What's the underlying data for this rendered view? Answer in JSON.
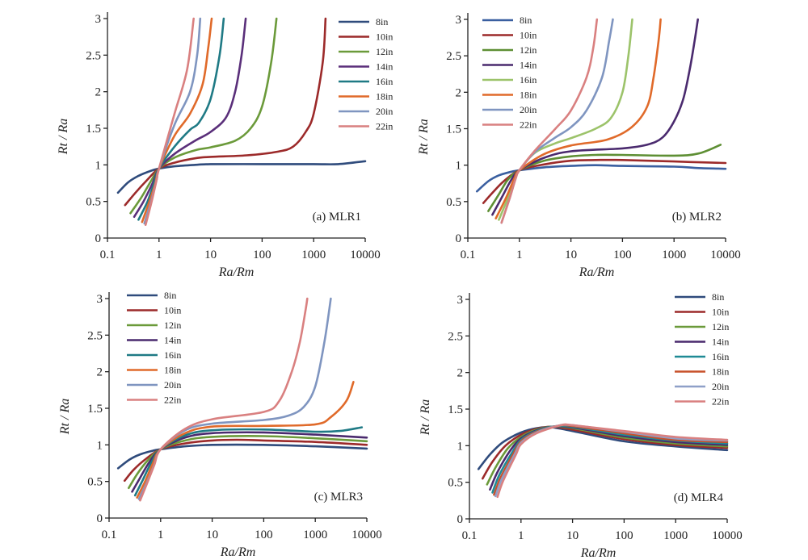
{
  "chart_data": [
    {
      "type": "line",
      "title": "",
      "panel_label": "(a) MLR1",
      "xlabel": "Ra/Rm",
      "ylabel": "Rt / Ra",
      "xscale": "log",
      "xlim": [
        0.1,
        10000
      ],
      "ylim": [
        0,
        3
      ],
      "x_ticks": [
        "0.1",
        "1",
        "10",
        "100",
        "1000",
        "10000"
      ],
      "y_ticks": [
        "0",
        "0.5",
        "1",
        "1.5",
        "2",
        "2.5",
        "3"
      ],
      "grid": false,
      "legend_position": "top-right",
      "series": [
        {
          "name": "8in",
          "color": "#2f4b7c",
          "x": [
            0.16,
            0.25,
            0.4,
            0.7,
            1,
            2,
            5,
            10,
            100,
            1000,
            3000,
            10000
          ],
          "y": [
            0.62,
            0.76,
            0.85,
            0.92,
            0.95,
            0.98,
            1.0,
            1.01,
            1.01,
            1.01,
            1.01,
            1.05
          ]
        },
        {
          "name": "10in",
          "color": "#9c2a2a",
          "x": [
            0.22,
            0.35,
            0.6,
            1,
            2,
            5,
            10,
            50,
            200,
            400,
            700,
            1000,
            1500,
            1700
          ],
          "y": [
            0.45,
            0.62,
            0.8,
            0.95,
            1.03,
            1.09,
            1.11,
            1.13,
            1.18,
            1.25,
            1.45,
            1.7,
            2.4,
            3.0
          ]
        },
        {
          "name": "12in",
          "color": "#6b9a3a",
          "x": [
            0.28,
            0.45,
            0.7,
            1,
            2,
            5,
            10,
            30,
            60,
            100,
            150,
            190
          ],
          "y": [
            0.34,
            0.55,
            0.78,
            0.95,
            1.1,
            1.2,
            1.24,
            1.33,
            1.5,
            1.8,
            2.4,
            3.0
          ]
        },
        {
          "name": "14in",
          "color": "#5a2f7a",
          "x": [
            0.33,
            0.5,
            0.75,
            1,
            2,
            5,
            10,
            20,
            30,
            40,
            48
          ],
          "y": [
            0.29,
            0.5,
            0.75,
            0.95,
            1.15,
            1.33,
            1.45,
            1.65,
            2.0,
            2.5,
            3.0
          ]
        },
        {
          "name": "16in",
          "color": "#1f7a85",
          "x": [
            0.4,
            0.6,
            0.8,
            1,
            2,
            4,
            6,
            10,
            15,
            18
          ],
          "y": [
            0.25,
            0.5,
            0.75,
            0.95,
            1.25,
            1.48,
            1.58,
            1.9,
            2.5,
            3.0
          ]
        },
        {
          "name": "18in",
          "color": "#e06a2a",
          "x": [
            0.47,
            0.65,
            0.85,
            1,
            2,
            4,
            7,
            9,
            10.5
          ],
          "y": [
            0.22,
            0.5,
            0.75,
            0.95,
            1.4,
            1.7,
            2.1,
            2.6,
            3.0
          ]
        },
        {
          "name": "20in",
          "color": "#7f95c0",
          "x": [
            0.52,
            0.7,
            0.9,
            1,
            2,
            4,
            5.5,
            6.3
          ],
          "y": [
            0.2,
            0.5,
            0.8,
            0.95,
            1.55,
            2.0,
            2.5,
            3.0
          ]
        },
        {
          "name": "22in",
          "color": "#d98080",
          "x": [
            0.55,
            0.72,
            0.9,
            1,
            2,
            3.5,
            4.7
          ],
          "y": [
            0.18,
            0.5,
            0.8,
            0.95,
            1.7,
            2.3,
            3.0
          ]
        }
      ]
    },
    {
      "type": "line",
      "title": "",
      "panel_label": "(b) MLR2",
      "xlabel": "Ra/Rm",
      "ylabel": "Rt / Ra",
      "xscale": "log",
      "xlim": [
        0.1,
        10000
      ],
      "ylim": [
        0,
        3
      ],
      "x_ticks": [
        "0.1",
        "1",
        "10",
        "100",
        "1000",
        "10000"
      ],
      "y_ticks": [
        "0",
        "0.5",
        "1",
        "1.5",
        "2",
        "2.5",
        "3"
      ],
      "grid": false,
      "legend_position": "top-left",
      "series": [
        {
          "name": "8in",
          "color": "#3a5fa0",
          "x": [
            0.15,
            0.25,
            0.4,
            0.7,
            1,
            3,
            10,
            30,
            100,
            1000,
            3000,
            10000
          ],
          "y": [
            0.64,
            0.78,
            0.86,
            0.91,
            0.93,
            0.97,
            0.99,
            1.0,
            0.99,
            0.98,
            0.96,
            0.95
          ]
        },
        {
          "name": "10in",
          "color": "#9c2a2a",
          "x": [
            0.2,
            0.3,
            0.5,
            1,
            3,
            10,
            30,
            100,
            1000,
            3000,
            10000
          ],
          "y": [
            0.48,
            0.62,
            0.78,
            0.93,
            1.01,
            1.06,
            1.07,
            1.07,
            1.05,
            1.04,
            1.03
          ]
        },
        {
          "name": "12in",
          "color": "#5e8f34",
          "x": [
            0.25,
            0.4,
            0.6,
            1,
            3,
            10,
            30,
            100,
            1000,
            3000,
            8000
          ],
          "y": [
            0.37,
            0.6,
            0.8,
            0.93,
            1.06,
            1.12,
            1.14,
            1.14,
            1.13,
            1.16,
            1.28
          ]
        },
        {
          "name": "14in",
          "color": "#4a2a6e",
          "x": [
            0.3,
            0.45,
            0.7,
            1,
            3,
            10,
            100,
            300,
            600,
            1000,
            1500,
            2000,
            2500,
            2900
          ],
          "y": [
            0.32,
            0.55,
            0.8,
            0.93,
            1.1,
            1.19,
            1.23,
            1.28,
            1.38,
            1.6,
            1.9,
            2.3,
            2.7,
            3.0
          ]
        },
        {
          "name": "16in",
          "color": "#9cc36a",
          "x": [
            0.4,
            0.6,
            0.8,
            1,
            2,
            5,
            10,
            30,
            60,
            100,
            130,
            155
          ],
          "y": [
            0.25,
            0.55,
            0.8,
            0.93,
            1.17,
            1.3,
            1.37,
            1.5,
            1.65,
            2.0,
            2.5,
            3.0
          ]
        },
        {
          "name": "18in",
          "color": "#e06a2a",
          "x": [
            0.35,
            0.55,
            0.8,
            1,
            3,
            10,
            50,
            150,
            300,
            400,
            500,
            550
          ],
          "y": [
            0.27,
            0.55,
            0.82,
            0.93,
            1.15,
            1.27,
            1.35,
            1.52,
            1.8,
            2.2,
            2.7,
            3.0
          ]
        },
        {
          "name": "20in",
          "color": "#7f95c0",
          "x": [
            0.45,
            0.65,
            0.85,
            1,
            2,
            5,
            10,
            20,
            40,
            55,
            65
          ],
          "y": [
            0.21,
            0.55,
            0.82,
            0.93,
            1.18,
            1.38,
            1.52,
            1.75,
            2.2,
            2.7,
            3.0
          ]
        },
        {
          "name": "22in",
          "color": "#d98080",
          "x": [
            0.45,
            0.65,
            0.85,
            1,
            2,
            5,
            10,
            20,
            27,
            32
          ],
          "y": [
            0.21,
            0.55,
            0.82,
            0.93,
            1.2,
            1.5,
            1.75,
            2.2,
            2.6,
            3.0
          ]
        }
      ]
    },
    {
      "type": "line",
      "title": "",
      "panel_label": "(c) MLR3",
      "xlabel": "Ra/Rm",
      "ylabel": "Rt / Ra",
      "xscale": "log",
      "xlim": [
        0.1,
        10000
      ],
      "ylim": [
        0,
        3
      ],
      "x_ticks": [
        "0.1",
        "1",
        "10",
        "100",
        "1000",
        "10000"
      ],
      "y_ticks": [
        "0",
        "0.5",
        "1",
        "1.5",
        "2",
        "2.5",
        "3"
      ],
      "grid": false,
      "legend_position": "top-left",
      "series": [
        {
          "name": "8in",
          "color": "#2f4b7c",
          "x": [
            0.15,
            0.25,
            0.4,
            0.7,
            1,
            3,
            10,
            100,
            1000,
            10000
          ],
          "y": [
            0.68,
            0.8,
            0.87,
            0.92,
            0.94,
            0.98,
            1.0,
            1.0,
            0.98,
            0.95
          ]
        },
        {
          "name": "10in",
          "color": "#9c2a2a",
          "x": [
            0.2,
            0.3,
            0.5,
            1,
            3,
            10,
            30,
            100,
            1000,
            10000
          ],
          "y": [
            0.51,
            0.66,
            0.8,
            0.94,
            1.02,
            1.06,
            1.07,
            1.06,
            1.04,
            1.0
          ]
        },
        {
          "name": "12in",
          "color": "#6b9a3a",
          "x": [
            0.24,
            0.35,
            0.55,
            1,
            3,
            10,
            100,
            1000,
            10000
          ],
          "y": [
            0.41,
            0.6,
            0.78,
            0.94,
            1.06,
            1.11,
            1.12,
            1.09,
            1.05
          ]
        },
        {
          "name": "14in",
          "color": "#4a2a6e",
          "x": [
            0.28,
            0.4,
            0.6,
            1,
            3,
            10,
            100,
            1000,
            10000
          ],
          "y": [
            0.36,
            0.55,
            0.76,
            0.94,
            1.1,
            1.16,
            1.17,
            1.14,
            1.1
          ]
        },
        {
          "name": "16in",
          "color": "#1f7a85",
          "x": [
            0.32,
            0.45,
            0.65,
            1,
            3,
            10,
            100,
            1000,
            3000,
            8000
          ],
          "y": [
            0.31,
            0.52,
            0.75,
            0.94,
            1.13,
            1.2,
            1.21,
            1.18,
            1.19,
            1.24
          ]
        },
        {
          "name": "18in",
          "color": "#e06a2a",
          "x": [
            0.35,
            0.5,
            0.7,
            1,
            3,
            10,
            100,
            1000,
            2000,
            4000,
            5500
          ],
          "y": [
            0.28,
            0.5,
            0.74,
            0.94,
            1.16,
            1.25,
            1.26,
            1.28,
            1.38,
            1.6,
            1.86
          ]
        },
        {
          "name": "20in",
          "color": "#7f95c0",
          "x": [
            0.38,
            0.55,
            0.75,
            1,
            3,
            10,
            100,
            300,
            600,
            1000,
            1500,
            2000
          ],
          "y": [
            0.26,
            0.5,
            0.73,
            0.94,
            1.2,
            1.29,
            1.34,
            1.4,
            1.52,
            1.8,
            2.4,
            3.0
          ]
        },
        {
          "name": "22in",
          "color": "#d98080",
          "x": [
            0.4,
            0.55,
            0.75,
            1,
            3,
            10,
            100,
            200,
            350,
            500,
            650,
            700
          ],
          "y": [
            0.24,
            0.48,
            0.72,
            0.94,
            1.22,
            1.35,
            1.45,
            1.6,
            2.0,
            2.4,
            2.85,
            3.0
          ]
        }
      ]
    },
    {
      "type": "line",
      "title": "",
      "panel_label": "(d) MLR4",
      "xlabel": "Ra/Rm",
      "ylabel": "Rt / Ra",
      "xscale": "log",
      "xlim": [
        0.1,
        10000
      ],
      "ylim": [
        0,
        3
      ],
      "x_ticks": [
        "0.1",
        "1",
        "10",
        "100",
        "1000",
        "10000"
      ],
      "y_ticks": [
        "0",
        "0.5",
        "1",
        "1.5",
        "2",
        "2.5",
        "3"
      ],
      "grid": false,
      "legend_position": "top-right",
      "series": [
        {
          "name": "8in",
          "color": "#2f4b7c",
          "x": [
            0.15,
            0.25,
            0.45,
            1,
            2,
            4,
            10,
            100,
            1000,
            10000
          ],
          "y": [
            0.68,
            0.88,
            1.05,
            1.18,
            1.24,
            1.25,
            1.2,
            1.06,
            0.99,
            0.94
          ]
        },
        {
          "name": "10in",
          "color": "#9c2a2a",
          "x": [
            0.18,
            0.28,
            0.5,
            1,
            2,
            4,
            10,
            100,
            1000,
            10000
          ],
          "y": [
            0.55,
            0.78,
            1.0,
            1.15,
            1.23,
            1.26,
            1.22,
            1.09,
            1.01,
            0.97
          ]
        },
        {
          "name": "12in",
          "color": "#6b9a3a",
          "x": [
            0.22,
            0.32,
            0.55,
            1,
            2,
            4,
            10,
            100,
            1000,
            10000
          ],
          "y": [
            0.47,
            0.7,
            0.96,
            1.12,
            1.22,
            1.26,
            1.24,
            1.11,
            1.03,
            0.99
          ]
        },
        {
          "name": "14in",
          "color": "#4a2a6e",
          "x": [
            0.25,
            0.35,
            0.6,
            1,
            2,
            4,
            10,
            100,
            1000,
            10000
          ],
          "y": [
            0.4,
            0.64,
            0.92,
            1.1,
            1.21,
            1.26,
            1.25,
            1.13,
            1.05,
            1.01
          ]
        },
        {
          "name": "16in",
          "color": "#1f8a95",
          "x": [
            0.28,
            0.38,
            0.65,
            1,
            2,
            4,
            10,
            100,
            1000,
            10000
          ],
          "y": [
            0.36,
            0.6,
            0.89,
            1.08,
            1.2,
            1.26,
            1.26,
            1.15,
            1.07,
            1.03
          ]
        },
        {
          "name": "18in",
          "color": "#c8502a",
          "x": [
            0.3,
            0.4,
            0.7,
            1,
            2,
            5,
            10,
            100,
            1000,
            10000
          ],
          "y": [
            0.33,
            0.56,
            0.88,
            1.06,
            1.19,
            1.27,
            1.27,
            1.17,
            1.08,
            1.05
          ]
        },
        {
          "name": "20in",
          "color": "#8fa0c8",
          "x": [
            0.32,
            0.42,
            0.75,
            1,
            2,
            5,
            10,
            100,
            1000,
            10000
          ],
          "y": [
            0.31,
            0.54,
            0.88,
            1.04,
            1.18,
            1.27,
            1.28,
            1.19,
            1.1,
            1.07
          ]
        },
        {
          "name": "22in",
          "color": "#d98080",
          "x": [
            0.35,
            0.45,
            0.8,
            1,
            2,
            6,
            10,
            100,
            1000,
            10000
          ],
          "y": [
            0.3,
            0.52,
            0.88,
            1.02,
            1.17,
            1.28,
            1.28,
            1.2,
            1.12,
            1.08
          ]
        }
      ]
    }
  ]
}
